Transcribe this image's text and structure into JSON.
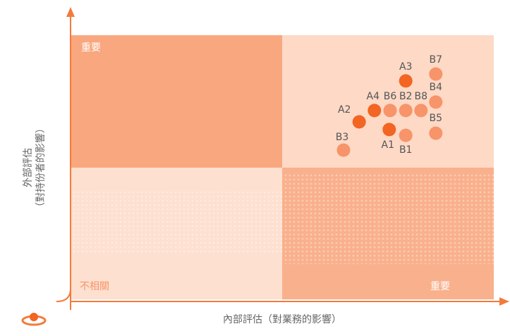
{
  "chart_data": {
    "type": "scatter",
    "xlim": [
      0,
      10
    ],
    "ylim": [
      0,
      10
    ],
    "xlabel": "內部評估（對業務的影響）",
    "ylabel": [
      "外部評估",
      "（對持份者的影響）"
    ],
    "quadrants": [
      "重要",
      "不相關",
      "重要"
    ],
    "series": [
      {
        "color": "#f26522",
        "labels": [
          "A1",
          "A2",
          "A3",
          "A4"
        ],
        "x": [
          7.53,
          6.82,
          7.92,
          7.18
        ],
        "values": [
          6.43,
          6.72,
          8.27,
          7.15
        ]
      },
      {
        "color": "#f7946a",
        "labels": [
          "B1",
          "B2",
          "B3",
          "B4",
          "B5",
          "B6",
          "B7",
          "B8"
        ],
        "x": [
          7.92,
          7.92,
          6.45,
          8.63,
          8.63,
          7.55,
          8.63,
          8.28
        ],
        "values": [
          6.21,
          7.15,
          5.65,
          7.47,
          6.29,
          7.15,
          8.53,
          7.15
        ]
      }
    ]
  }
}
